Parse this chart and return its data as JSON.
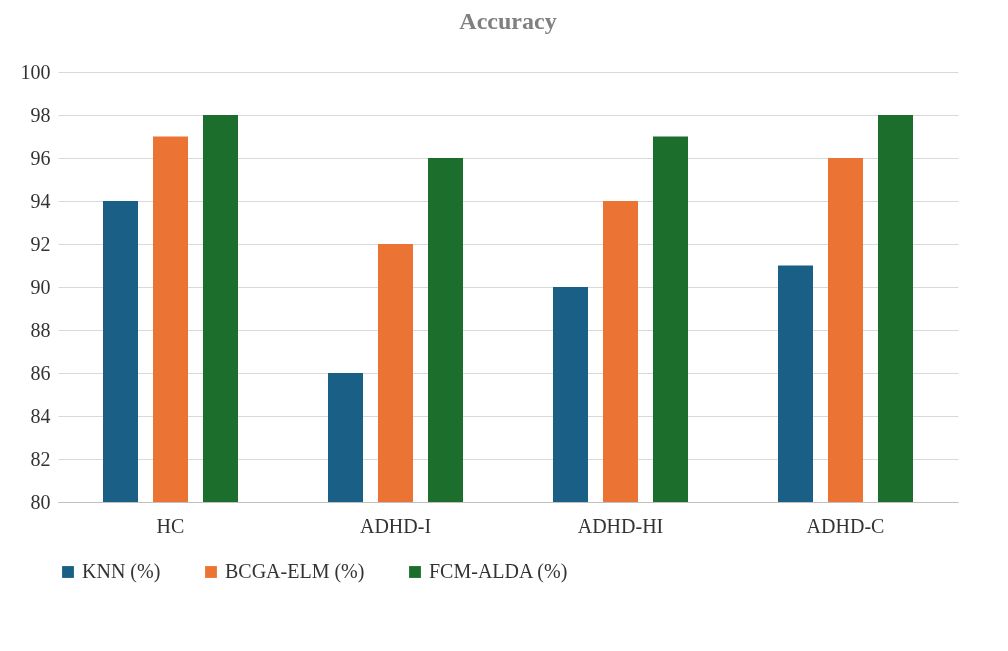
{
  "chart_data": {
    "type": "bar",
    "title": "Accuracy",
    "categories": [
      "HC",
      "ADHD-I",
      "ADHD-HI",
      "ADHD-C"
    ],
    "series": [
      {
        "name": "KNN (%)",
        "color": "#1a5f86",
        "values": [
          94,
          86,
          90,
          91
        ]
      },
      {
        "name": "BCGA-ELM (%)",
        "color": "#eb7435",
        "values": [
          97,
          92,
          94,
          96
        ]
      },
      {
        "name": "FCM-ALDA (%)",
        "color": "#1b6e2b",
        "values": [
          98,
          96,
          97,
          98
        ]
      }
    ],
    "ylim": [
      80,
      100
    ],
    "yticks": [
      80,
      82,
      84,
      86,
      88,
      90,
      92,
      94,
      96,
      98,
      100
    ],
    "grid": "y",
    "legend": "bottom"
  }
}
